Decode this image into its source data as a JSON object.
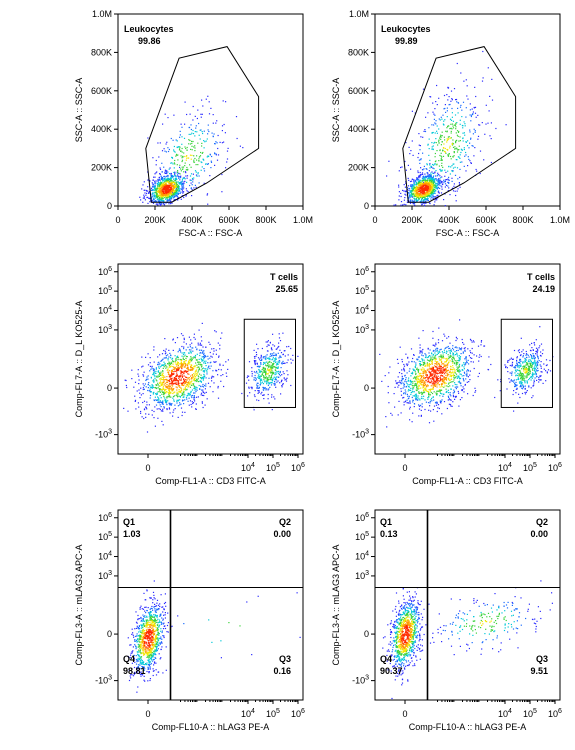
{
  "chart_data": [
    {
      "type": "scatter",
      "xlabel": "FSC-A :: FSC-A",
      "ylabel": "SSC-A :: SSC-A",
      "xticks": [
        "0",
        "200K",
        "400K",
        "600K",
        "800K",
        "1.0M"
      ],
      "yticks": [
        "0",
        "200K",
        "400K",
        "600K",
        "800K",
        "1.0M"
      ],
      "xlim": [
        0,
        1000000
      ],
      "ylim": [
        0,
        1000000
      ],
      "gates": [
        {
          "kind": "polygon",
          "name": "Leukocytes",
          "value": "99.86",
          "vertices": [
            [
              180000,
              20000
            ],
            [
              150000,
              300000
            ],
            [
              330000,
              770000
            ],
            [
              590000,
              830000
            ],
            [
              760000,
              570000
            ],
            [
              760000,
              300000
            ],
            [
              480000,
              120000
            ],
            [
              290000,
              20000
            ]
          ]
        }
      ],
      "populations": [
        {
          "cx": 260000,
          "cy": 90000,
          "sx": 50000,
          "sy": 40000,
          "n": 900
        },
        {
          "cx": 380000,
          "cy": 260000,
          "sx": 100000,
          "sy": 120000,
          "n": 350
        }
      ]
    },
    {
      "type": "scatter",
      "xlabel": "FSC-A :: FSC-A",
      "ylabel": "SSC-A :: SSC-A",
      "xticks": [
        "0",
        "200K",
        "400K",
        "600K",
        "800K",
        "1.0M"
      ],
      "yticks": [
        "0",
        "200K",
        "400K",
        "600K",
        "800K",
        "1.0M"
      ],
      "xlim": [
        0,
        1000000
      ],
      "ylim": [
        0,
        1000000
      ],
      "gates": [
        {
          "kind": "polygon",
          "name": "Leukocytes",
          "value": "99.89",
          "vertices": [
            [
              180000,
              20000
            ],
            [
              150000,
              300000
            ],
            [
              330000,
              770000
            ],
            [
              590000,
              830000
            ],
            [
              760000,
              570000
            ],
            [
              760000,
              300000
            ],
            [
              480000,
              120000
            ],
            [
              290000,
              20000
            ]
          ]
        }
      ],
      "populations": [
        {
          "cx": 260000,
          "cy": 90000,
          "sx": 50000,
          "sy": 40000,
          "n": 900
        },
        {
          "cx": 390000,
          "cy": 320000,
          "sx": 100000,
          "sy": 150000,
          "n": 500
        }
      ]
    },
    {
      "type": "scatter",
      "xlabel": "Comp-FL1-A :: CD3 FITC-A",
      "ylabel": "Comp-FL7-A :: D_L KO525-A",
      "xticks": [
        "0",
        "10^4",
        "10^5",
        "10^6"
      ],
      "yticks": [
        "-10^3",
        "0",
        "10^3",
        "10^4",
        "10^5",
        "10^6"
      ],
      "xlim": [
        -1.2,
        6.2
      ],
      "ylim": [
        -3.4,
        6.4
      ],
      "gates": [
        {
          "kind": "rect",
          "name": "T cells",
          "value": "25.65",
          "x": [
            3.85,
            5.9
          ],
          "y": [
            -1.0,
            3.55
          ]
        }
      ],
      "populations": [
        {
          "cx": 1.2,
          "cy": 0.6,
          "sx": 0.75,
          "sy": 0.85,
          "n": 1200
        },
        {
          "cx": 4.8,
          "cy": 0.9,
          "sx": 0.38,
          "sy": 0.65,
          "n": 450
        }
      ]
    },
    {
      "type": "scatter",
      "xlabel": "Comp-FL1-A :: CD3 FITC-A",
      "ylabel": "Comp-FL7-A :: D_L KO525-A",
      "xticks": [
        "0",
        "10^4",
        "10^5",
        "10^6"
      ],
      "yticks": [
        "-10^3",
        "0",
        "10^3",
        "10^4",
        "10^5",
        "10^6"
      ],
      "xlim": [
        -1.2,
        6.2
      ],
      "ylim": [
        -3.4,
        6.4
      ],
      "gates": [
        {
          "kind": "rect",
          "name": "T cells",
          "value": "24.19",
          "x": [
            3.85,
            5.9
          ],
          "y": [
            -1.0,
            3.55
          ]
        }
      ],
      "populations": [
        {
          "cx": 1.2,
          "cy": 0.7,
          "sx": 0.75,
          "sy": 0.85,
          "n": 1200
        },
        {
          "cx": 4.8,
          "cy": 0.9,
          "sx": 0.38,
          "sy": 0.6,
          "n": 420
        }
      ]
    },
    {
      "type": "scatter",
      "xlabel": "Comp-FL10-A :: hLAG3 PE-A",
      "ylabel": "Comp-FL3-A :: mLAG3 APC-A",
      "xticks": [
        "0",
        "10^4",
        "10^5",
        "10^6"
      ],
      "yticks": [
        "-10^3",
        "0",
        "10^3",
        "10^4",
        "10^5",
        "10^6"
      ],
      "xlim": [
        -1.2,
        6.2
      ],
      "ylim": [
        -3.4,
        6.4
      ],
      "quadrant": {
        "x": 0.9,
        "y": 2.4
      },
      "quadrants": [
        {
          "name": "Q1",
          "value": "1.03",
          "corner": "top-left"
        },
        {
          "name": "Q2",
          "value": "0.00",
          "corner": "top-right"
        },
        {
          "name": "Q3",
          "value": "0.16",
          "corner": "bottom-right"
        },
        {
          "name": "Q4",
          "value": "98.81",
          "corner": "bottom-left"
        }
      ],
      "populations": [
        {
          "cx": 0.0,
          "cy": -0.2,
          "sx": 0.32,
          "sy": 0.9,
          "n": 900
        },
        {
          "cx": 2.8,
          "cy": 0.3,
          "sx": 1.2,
          "sy": 0.8,
          "n": 12
        }
      ]
    },
    {
      "type": "scatter",
      "xlabel": "Comp-FL10-A :: hLAG3 PE-A",
      "ylabel": "Comp-FL3-A :: mLAG3 APC-A",
      "xticks": [
        "0",
        "10^4",
        "10^5",
        "10^6"
      ],
      "yticks": [
        "-10^3",
        "0",
        "10^3",
        "10^4",
        "10^5",
        "10^6"
      ],
      "xlim": [
        -1.2,
        6.2
      ],
      "ylim": [
        -3.4,
        6.4
      ],
      "quadrant": {
        "x": 0.9,
        "y": 2.4
      },
      "quadrants": [
        {
          "name": "Q1",
          "value": "0.13",
          "corner": "top-left"
        },
        {
          "name": "Q2",
          "value": "0.00",
          "corner": "top-right"
        },
        {
          "name": "Q3",
          "value": "9.51",
          "corner": "bottom-right"
        },
        {
          "name": "Q4",
          "value": "90.37",
          "corner": "bottom-left"
        }
      ],
      "populations": [
        {
          "cx": 0.0,
          "cy": 0.0,
          "sx": 0.3,
          "sy": 0.9,
          "n": 900
        },
        {
          "cx": 3.2,
          "cy": 0.6,
          "sx": 1.1,
          "sy": 0.7,
          "n": 220
        }
      ]
    }
  ]
}
